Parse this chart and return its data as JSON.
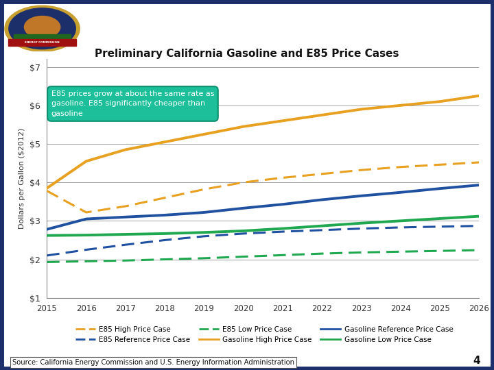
{
  "title": "Preliminary California Gasoline and E85 Price Cases",
  "header": "California Energy Commission",
  "ylabel": "Dollars per Gallon ($2012)",
  "source": "Source: California Energy Commission and U.S. Energy Information Administration",
  "page_num": "4",
  "years": [
    2015,
    2016,
    2017,
    2018,
    2019,
    2020,
    2021,
    2022,
    2023,
    2024,
    2025,
    2026
  ],
  "ylim": [
    1.0,
    7.2
  ],
  "yticks": [
    1,
    2,
    3,
    4,
    5,
    6,
    7
  ],
  "ytick_labels": [
    "$1",
    "$2",
    "$3",
    "$4",
    "$5",
    "$6",
    "$7"
  ],
  "gasoline_high": [
    3.85,
    4.55,
    4.85,
    5.05,
    5.25,
    5.45,
    5.6,
    5.75,
    5.9,
    6.0,
    6.1,
    6.25
  ],
  "gasoline_ref": [
    2.78,
    3.05,
    3.1,
    3.15,
    3.22,
    3.33,
    3.43,
    3.55,
    3.65,
    3.74,
    3.84,
    3.93
  ],
  "gasoline_low": [
    2.62,
    2.63,
    2.65,
    2.67,
    2.7,
    2.74,
    2.8,
    2.87,
    2.94,
    3.0,
    3.06,
    3.12
  ],
  "e85_high": [
    3.78,
    3.22,
    3.38,
    3.6,
    3.82,
    4.0,
    4.12,
    4.22,
    4.32,
    4.4,
    4.46,
    4.52
  ],
  "e85_ref": [
    2.1,
    2.25,
    2.38,
    2.5,
    2.6,
    2.67,
    2.72,
    2.76,
    2.8,
    2.83,
    2.85,
    2.87
  ],
  "e85_low": [
    1.93,
    1.95,
    1.97,
    2.0,
    2.03,
    2.07,
    2.11,
    2.15,
    2.18,
    2.2,
    2.22,
    2.24
  ],
  "color_orange": "#E8A020",
  "color_blue": "#2050A0",
  "color_green": "#20A850",
  "header_bg": "#1C2F6B",
  "header_text": "#FFFFFF",
  "border_color": "#1C2F6B",
  "bg_color": "#FFFFFF",
  "plot_bg": "#FFFFFF",
  "annotation_text": "E85 prices grow at about the same rate as\ngasoline. E85 significantly cheaper than\ngasoline",
  "annotation_bg": "#1DBF9A",
  "annotation_text_color": "#FFFFFF",
  "annotation_border": "#0E9070"
}
